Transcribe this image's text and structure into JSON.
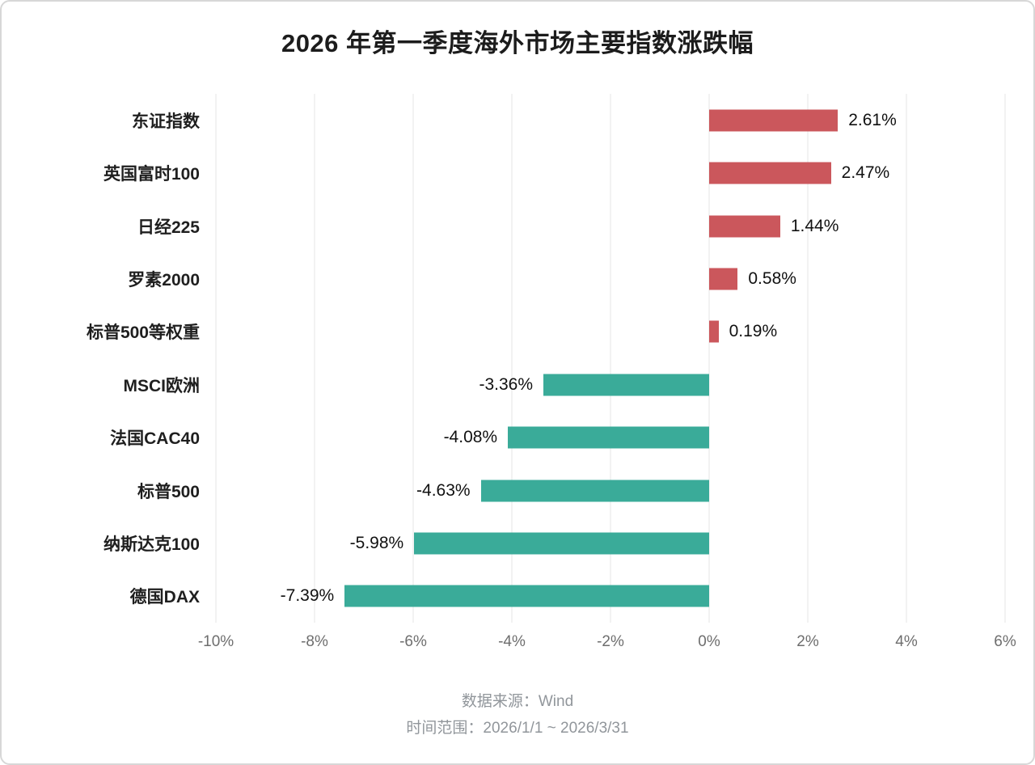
{
  "title": "2026 年第一季度海外市场主要指数涨跌幅",
  "footer": {
    "source": "数据来源：Wind",
    "range": "时间范围：2026/1/1 ~ 2026/3/31"
  },
  "chart_data": {
    "type": "bar",
    "orientation": "horizontal",
    "title": "2026 年第一季度海外市场主要指数涨跌幅",
    "categories": [
      "东证指数",
      "英国富时100",
      "日经225",
      "罗素2000",
      "标普500等权重",
      "MSCI欧洲",
      "法国CAC40",
      "标普500",
      "纳斯达克100",
      "德国DAX"
    ],
    "values": [
      2.61,
      2.47,
      1.44,
      0.58,
      0.19,
      -3.36,
      -4.08,
      -4.63,
      -5.98,
      -7.39
    ],
    "value_labels": [
      "2.61%",
      "2.47%",
      "1.44%",
      "0.58%",
      "0.19%",
      "-3.36%",
      "-4.08%",
      "-4.63%",
      "-5.98%",
      "-7.39%"
    ],
    "x_ticks": [
      "-10%",
      "-8%",
      "-6%",
      "-4%",
      "-2%",
      "0%",
      "2%",
      "4%",
      "6%"
    ],
    "xlim": [
      -10,
      6
    ],
    "grid": true,
    "legend": "none",
    "colors": {
      "positive": "#cb575c",
      "negative": "#3aab99"
    }
  }
}
